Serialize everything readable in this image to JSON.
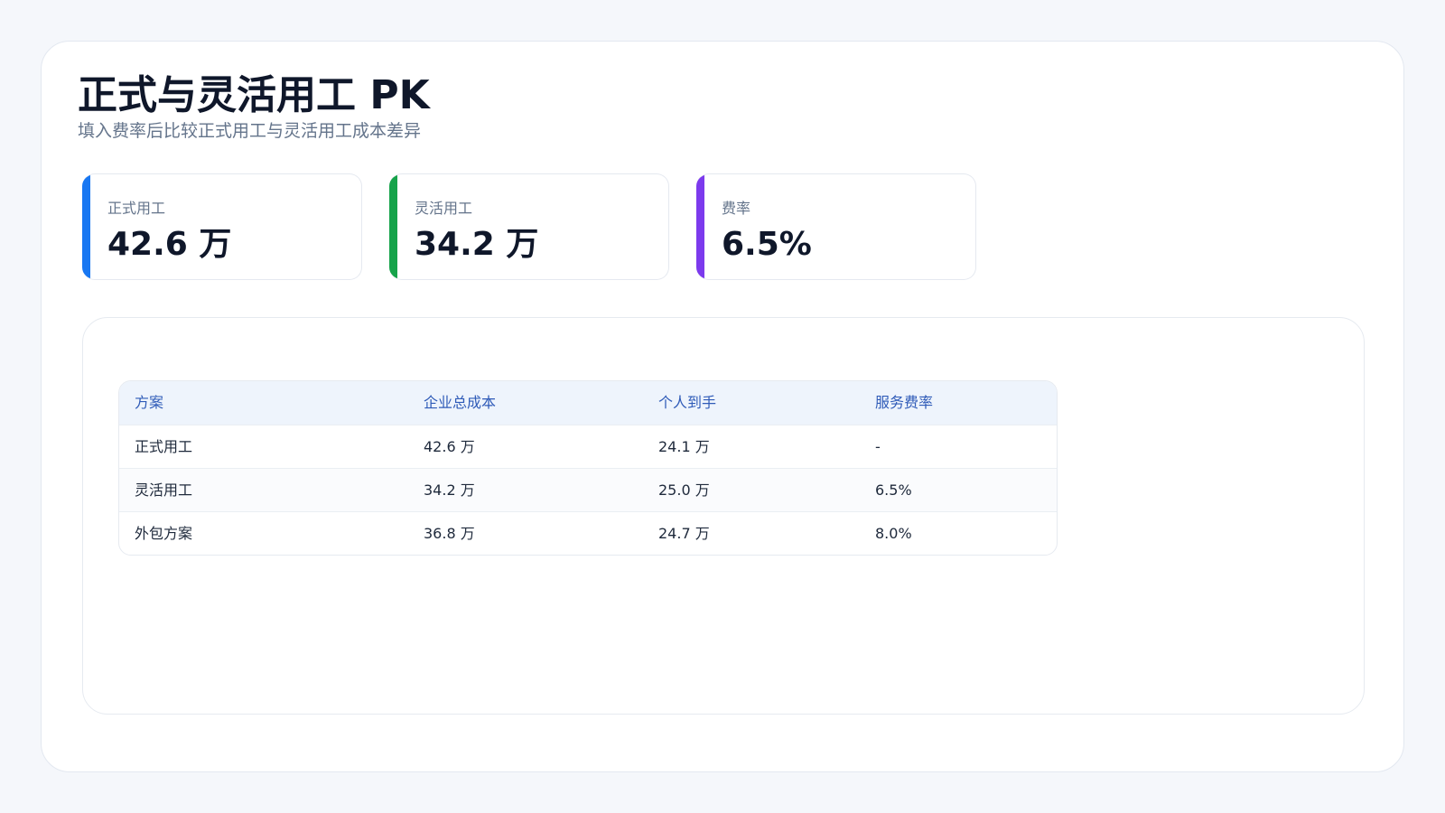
{
  "header": {
    "title": "正式与灵活用工 PK",
    "subtitle": "填入费率后比较正式用工与灵活用工成本差异"
  },
  "colors": {
    "accent_formal": "#1877f2",
    "accent_flexible": "#16a34a",
    "accent_rate": "#7c3aed",
    "table_header_text": "#2f5bb8"
  },
  "cards": [
    {
      "label": "正式用工",
      "value": "42.6 万"
    },
    {
      "label": "灵活用工",
      "value": "34.2 万"
    },
    {
      "label": "费率",
      "value": "6.5%"
    }
  ],
  "table": {
    "columns": [
      "方案",
      "企业总成本",
      "个人到手",
      "服务费率"
    ],
    "rows": [
      [
        "正式用工",
        "42.6 万",
        "24.1 万",
        "-"
      ],
      [
        "灵活用工",
        "34.2 万",
        "25.0 万",
        "6.5%"
      ],
      [
        "外包方案",
        "36.8 万",
        "24.7 万",
        "8.0%"
      ]
    ]
  }
}
